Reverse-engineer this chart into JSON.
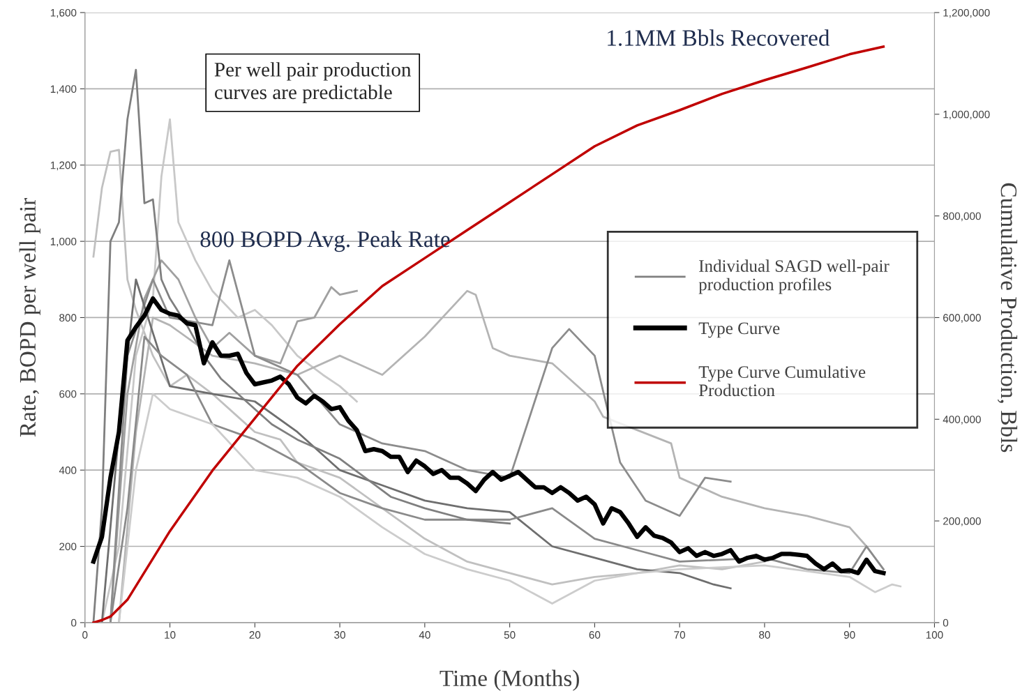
{
  "chart_data": {
    "type": "line",
    "xlabel": "Time (Months)",
    "ylabel": "Rate, BOPD per well pair",
    "y2label": "Cumulative Production, Bbls",
    "xlim": [
      0,
      100
    ],
    "xticks": [
      0,
      10,
      20,
      30,
      40,
      50,
      60,
      70,
      80,
      90,
      100
    ],
    "ylim": [
      0,
      1600
    ],
    "yticks": [
      0,
      200,
      400,
      600,
      800,
      {
        "value": 1000,
        "label": "1,000"
      },
      {
        "value": 1200,
        "label": "1,200"
      },
      {
        "value": 1400,
        "label": "1,400"
      },
      {
        "value": 1600,
        "label": "1,600"
      }
    ],
    "y2lim": [
      0,
      1200000
    ],
    "y2ticks": [
      0,
      {
        "value": 200000,
        "label": "200,000"
      },
      {
        "value": 400000,
        "label": "400,000"
      },
      {
        "value": 600000,
        "label": "600,000"
      },
      {
        "value": 800000,
        "label": "800,000"
      },
      {
        "value": 1000000,
        "label": "1,000,000"
      },
      {
        "value": 1200000,
        "label": "1,200,000"
      }
    ],
    "grid": "y",
    "legend": "right",
    "marker": "none",
    "annotations": [
      "Per well pair production\ncurves are predictable",
      "800 BOPD Avg. Peak Rate",
      "1.1MM Bbls Recovered"
    ],
    "series": [
      {
        "name": "Individual SAGD well-pair\nproduction profiles",
        "color": "#7f7f7f",
        "x": [
          1,
          2,
          3,
          4,
          5,
          6,
          7,
          8,
          9,
          10,
          12,
          14,
          16,
          18,
          20,
          22,
          25,
          28,
          30,
          33,
          36,
          40,
          45,
          50
        ],
        "values": [
          0,
          300,
          1000,
          1050,
          1320,
          1450,
          1100,
          1110,
          900,
          850,
          780,
          700,
          640,
          600,
          560,
          520,
          480,
          450,
          430,
          380,
          330,
          300,
          270,
          260
        ]
      },
      {
        "color": "#c0c0c0",
        "x": [
          1,
          2,
          3,
          4,
          5,
          6,
          8,
          10,
          12,
          15,
          18,
          20,
          23,
          25,
          30,
          35,
          40,
          45,
          50,
          55,
          60,
          65,
          70,
          75,
          80
        ],
        "values": [
          960,
          1140,
          1235,
          1240,
          900,
          820,
          700,
          620,
          650,
          600,
          540,
          500,
          480,
          420,
          380,
          300,
          220,
          160,
          130,
          100,
          120,
          130,
          150,
          140,
          160
        ]
      },
      {
        "color": "#c8c8c8",
        "x": [
          2,
          4,
          6,
          8,
          9,
          10,
          11,
          13,
          15,
          18,
          20,
          22,
          25,
          28,
          30,
          32
        ],
        "values": [
          0,
          200,
          700,
          850,
          1170,
          1320,
          1050,
          950,
          870,
          800,
          820,
          780,
          700,
          650,
          620,
          580
        ]
      },
      {
        "color": "#a0a0a0",
        "x": [
          3,
          5,
          7,
          9,
          11,
          13,
          15,
          17,
          20,
          23,
          25,
          27,
          29,
          30,
          32
        ],
        "values": [
          0,
          600,
          850,
          950,
          900,
          800,
          720,
          760,
          700,
          680,
          790,
          800,
          880,
          860,
          870
        ]
      },
      {
        "color": "#b4b4b4",
        "x": [
          4,
          6,
          8,
          10,
          15,
          20,
          25,
          30,
          35,
          40,
          45,
          46,
          48,
          50,
          55,
          60,
          61,
          69,
          70,
          73,
          75,
          80,
          85,
          90,
          92,
          94
        ],
        "values": [
          0,
          500,
          800,
          780,
          700,
          680,
          650,
          700,
          650,
          750,
          870,
          860,
          720,
          700,
          680,
          580,
          540,
          470,
          380,
          350,
          330,
          300,
          280,
          250,
          200,
          140
        ]
      },
      {
        "color": "#8c8c8c",
        "x": [
          3,
          5,
          8,
          10,
          15,
          17,
          20,
          25,
          30,
          35,
          40,
          45,
          50,
          55,
          57,
          60,
          63,
          66,
          70,
          73,
          76
        ],
        "values": [
          0,
          700,
          900,
          800,
          780,
          950,
          700,
          650,
          520,
          470,
          450,
          400,
          380,
          720,
          770,
          700,
          420,
          320,
          280,
          380,
          370
        ]
      },
      {
        "color": "#6e6e6e",
        "x": [
          2,
          4,
          6,
          8,
          10,
          15,
          20,
          25,
          30,
          35,
          40,
          45,
          50,
          55,
          60,
          65,
          70,
          74,
          76
        ],
        "values": [
          0,
          500,
          900,
          760,
          620,
          600,
          580,
          500,
          400,
          360,
          320,
          300,
          290,
          200,
          170,
          140,
          130,
          100,
          90
        ]
      },
      {
        "color": "#8a8a8a",
        "x": [
          3,
          5,
          7,
          9,
          12,
          15,
          20,
          25,
          30,
          35,
          40,
          50,
          55,
          60,
          65,
          70,
          80,
          85,
          90,
          92,
          94
        ],
        "values": [
          0,
          300,
          750,
          700,
          650,
          520,
          480,
          420,
          340,
          300,
          270,
          270,
          300,
          220,
          190,
          160,
          170,
          140,
          130,
          200,
          140
        ]
      },
      {
        "color": "#cccccc",
        "x": [
          4,
          6,
          8,
          10,
          15,
          20,
          25,
          30,
          35,
          40,
          45,
          50,
          55,
          60,
          65,
          70,
          80,
          90,
          93,
          95,
          96
        ],
        "values": [
          0,
          400,
          600,
          560,
          520,
          400,
          380,
          330,
          250,
          180,
          140,
          110,
          50,
          110,
          130,
          140,
          150,
          120,
          80,
          100,
          95
        ]
      },
      {
        "name": "Type Curve",
        "color": "#000000",
        "x": [
          1,
          2,
          3,
          4,
          5,
          6,
          7,
          8,
          9,
          10,
          11,
          12,
          13,
          14,
          15,
          16,
          17,
          18,
          19,
          20,
          21,
          22,
          23,
          24,
          25,
          26,
          27,
          28,
          29,
          30,
          31,
          32,
          33,
          34,
          35,
          36,
          37,
          38,
          39,
          40,
          41,
          42,
          43,
          44,
          45,
          46,
          47,
          48,
          49,
          50,
          51,
          52,
          53,
          54,
          55,
          56,
          57,
          58,
          59,
          60,
          61,
          62,
          63,
          64,
          65,
          66,
          67,
          68,
          69,
          70,
          71,
          72,
          73,
          74,
          75,
          76,
          77,
          78,
          79,
          80,
          81,
          82,
          83,
          84,
          85,
          86,
          87,
          88,
          89,
          90,
          91,
          92,
          93,
          94
        ],
        "values": [
          160,
          225,
          380,
          500,
          740,
          775,
          805,
          850,
          820,
          810,
          805,
          785,
          780,
          680,
          735,
          700,
          700,
          705,
          655,
          625,
          630,
          635,
          645,
          625,
          590,
          575,
          595,
          580,
          560,
          565,
          530,
          505,
          450,
          455,
          450,
          435,
          435,
          395,
          425,
          410,
          390,
          400,
          380,
          380,
          365,
          345,
          375,
          395,
          375,
          385,
          395,
          375,
          355,
          355,
          340,
          355,
          340,
          320,
          330,
          310,
          260,
          300,
          290,
          260,
          225,
          250,
          228,
          222,
          210,
          185,
          195,
          175,
          185,
          175,
          180,
          190,
          160,
          170,
          175,
          165,
          170,
          180,
          180,
          178,
          175,
          155,
          140,
          155,
          135,
          137,
          130,
          165,
          135,
          130
        ]
      },
      {
        "name": "Type Curve Cumulative\nProduction",
        "color": "#c00000",
        "axis": "y2",
        "x": [
          1,
          2,
          3,
          5,
          10,
          15,
          20,
          25,
          30,
          35,
          40,
          45,
          50,
          55,
          60,
          65,
          70,
          75,
          80,
          85,
          90,
          94
        ],
        "values": [
          0,
          5000,
          12000,
          45000,
          180000,
          299000,
          402000,
          505000,
          587000,
          662000,
          717000,
          772000,
          827000,
          882000,
          937000,
          978000,
          1008000,
          1040000,
          1067000,
          1092000,
          1118000,
          1133000
        ]
      }
    ]
  }
}
